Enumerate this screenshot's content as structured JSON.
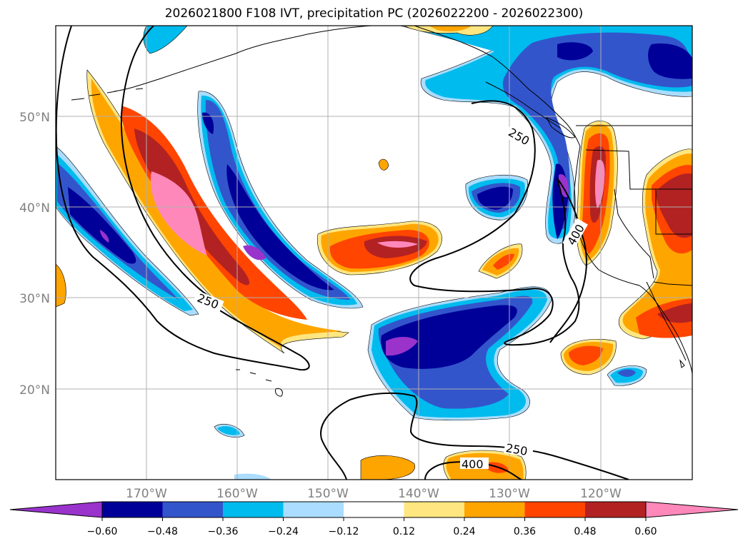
{
  "title": "2026021800 F108 IVT, precipitation PC (2026022200 - 2026022300)",
  "lat_labels": [
    "50°N",
    "40°N",
    "30°N",
    "20°N"
  ],
  "lon_labels": [
    "170°W",
    "160°W",
    "150°W",
    "140°W",
    "130°W",
    "120°W"
  ],
  "colorbar": {
    "ticks": [
      "−0.60",
      "−0.48",
      "−0.36",
      "−0.24",
      "−0.12",
      "0.12",
      "0.24",
      "0.36",
      "0.48",
      "0.60"
    ],
    "colors": [
      "#9933cc",
      "#000099",
      "#3355cc",
      "#00bbee",
      "#aaddff",
      "#ffffff",
      "#ffe680",
      "#ffa500",
      "#ff4500",
      "#b22222",
      "#ff88bb"
    ]
  },
  "contour_labels": [
    "250",
    "250",
    "250",
    "400",
    "400"
  ],
  "colors": {
    "purple": "#9933cc",
    "navy": "#000099",
    "blue": "#3355cc",
    "cyan": "#00bbee",
    "lightblue": "#aaddff",
    "yellow": "#ffe680",
    "orange": "#ffa500",
    "redorange": "#ff4500",
    "darkred": "#b22222",
    "pink": "#ff88bb",
    "grid": "#b0b0b0",
    "tick_label": "#808080"
  }
}
